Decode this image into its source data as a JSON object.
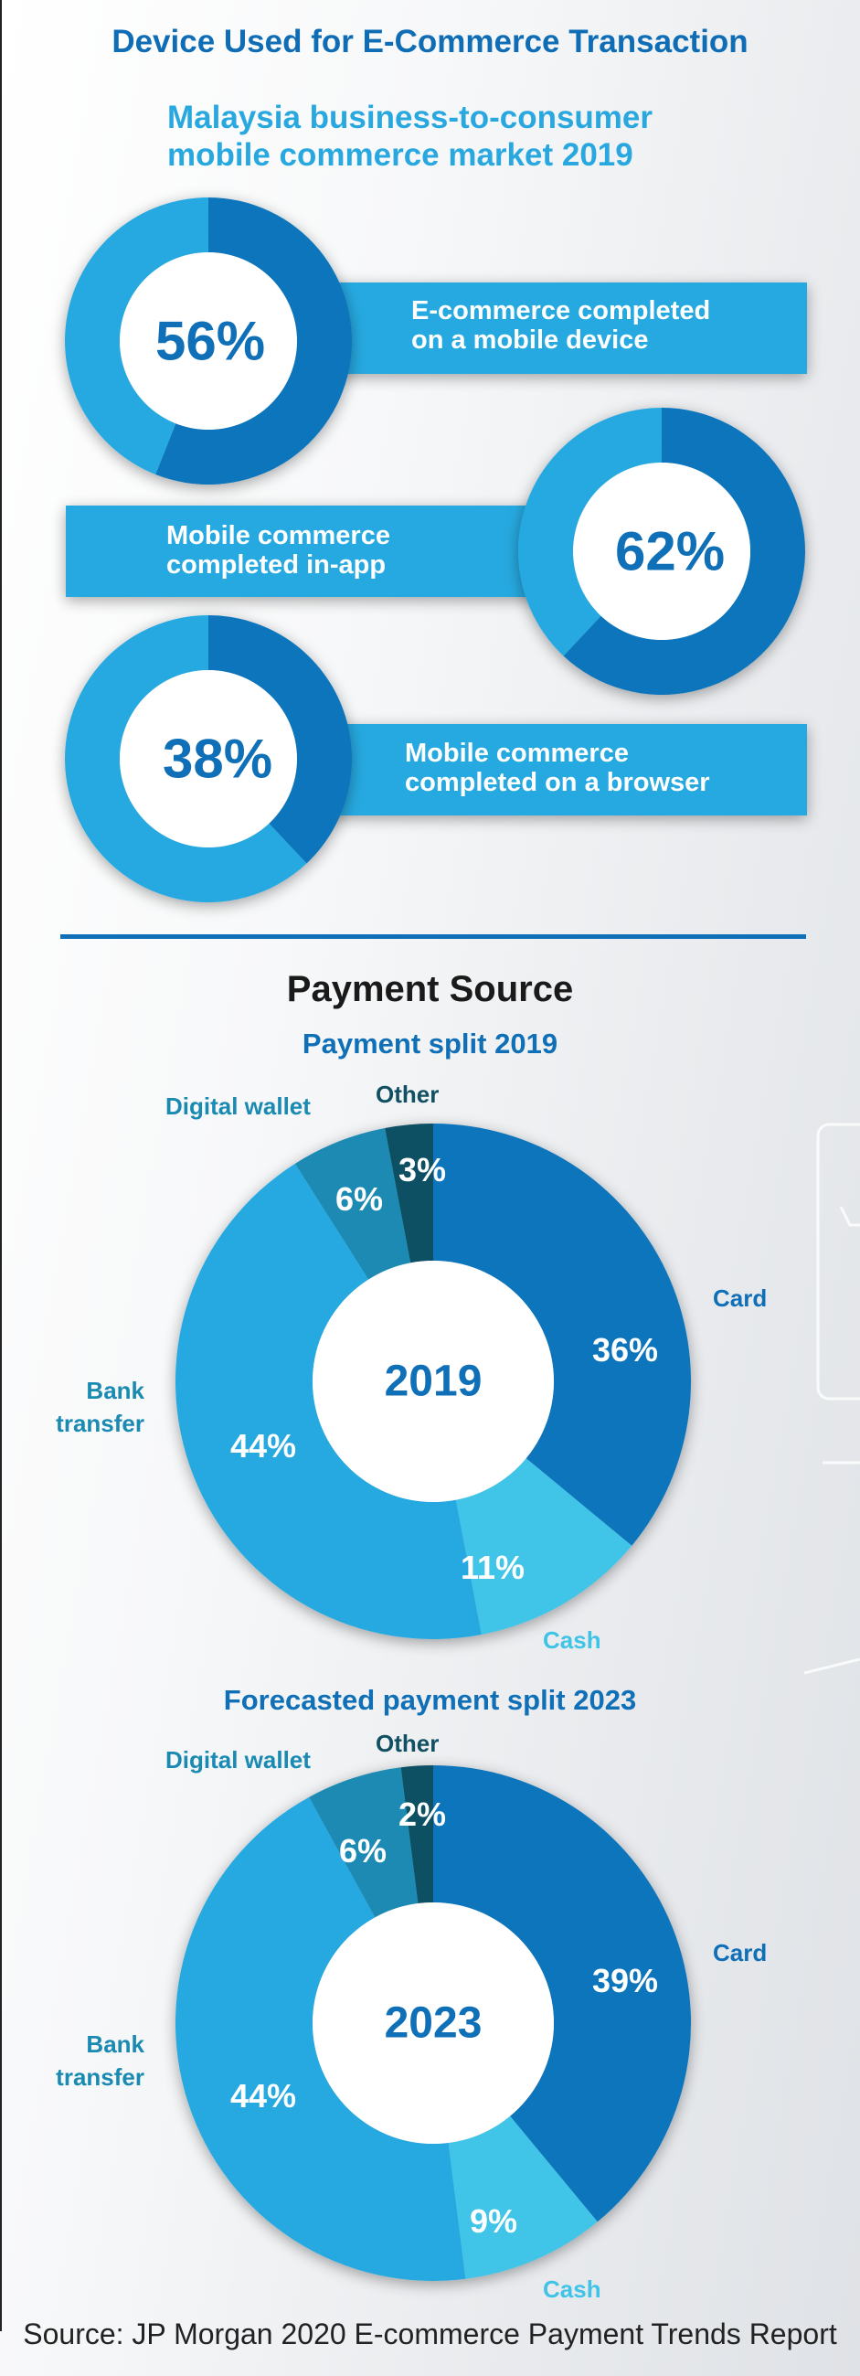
{
  "header": {
    "title": "Device Used for E-Commerce Transaction",
    "subtitle_line1": "Malaysia business-to-consumer",
    "subtitle_line2": "mobile commerce market 2019"
  },
  "device_stats": [
    {
      "value": 56,
      "label": "56%",
      "text_line1": "E-commerce completed",
      "text_line2": "on a mobile device"
    },
    {
      "value": 62,
      "label": "62%",
      "text_line1": "Mobile commerce",
      "text_line2": "completed in-app"
    },
    {
      "value": 38,
      "label": "38%",
      "text_line1": "Mobile commerce",
      "text_line2": "completed on a browser"
    }
  ],
  "payment": {
    "title": "Payment Source"
  },
  "colors": {
    "dark": "#0f74bb",
    "light": "#25a9e0",
    "teal": "#1a8ab3",
    "other": "#114f63",
    "cash": "#3fc4e8"
  },
  "chart_data": [
    {
      "type": "pie",
      "title": "Payment split 2019",
      "center_label": "2019",
      "categories": [
        "Card",
        "Cash",
        "Bank transfer",
        "Digital wallet",
        "Other"
      ],
      "values": [
        36,
        11,
        44,
        6,
        3
      ],
      "value_labels": [
        "36%",
        "11%",
        "44%",
        "6%",
        "3%"
      ],
      "legend_lines": [
        [
          "Card"
        ],
        [
          "Cash"
        ],
        [
          "Bank",
          "transfer"
        ],
        [
          "Digital wallet"
        ],
        [
          "Other"
        ]
      ]
    },
    {
      "type": "pie",
      "title": "Forecasted payment split 2023",
      "center_label": "2023",
      "categories": [
        "Card",
        "Cash",
        "Bank transfer",
        "Digital wallet",
        "Other"
      ],
      "values": [
        39,
        9,
        44,
        6,
        2
      ],
      "value_labels": [
        "39%",
        "9%",
        "44%",
        "6%",
        "2%"
      ],
      "legend_lines": [
        [
          "Card"
        ],
        [
          "Cash"
        ],
        [
          "Bank",
          "transfer"
        ],
        [
          "Digital wallet"
        ],
        [
          "Other"
        ]
      ]
    }
  ],
  "footer": {
    "source": "Source: JP Morgan 2020 E-commerce Payment Trends Report"
  }
}
